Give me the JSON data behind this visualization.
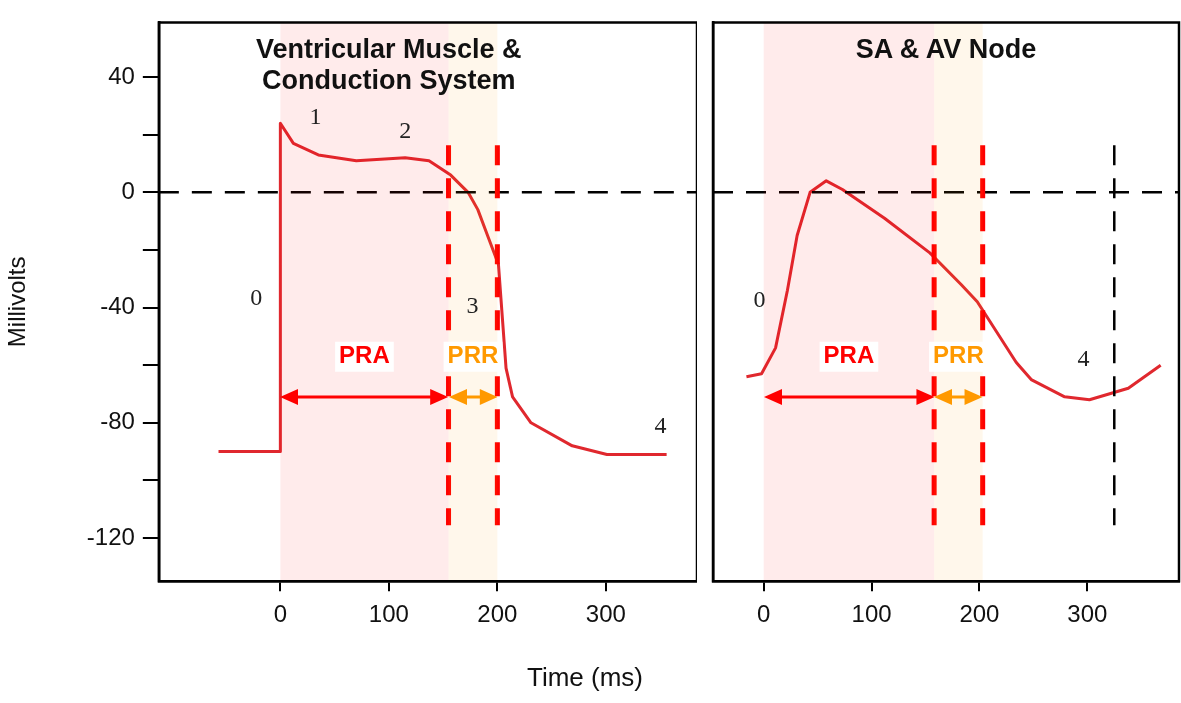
{
  "chart_data": [
    {
      "type": "line",
      "title": "Ventricular Muscle & Conduction System",
      "ylabel": "Millivolts",
      "xlabel": "Time (ms)",
      "xlim": [
        -112,
        384
      ],
      "xticks": [
        0,
        100,
        200,
        300
      ],
      "ylim": [
        -135,
        59
      ],
      "yticks": [
        -120,
        {
          "value": -100,
          "label": null
        },
        -80,
        {
          "value": -60,
          "label": null
        },
        -40,
        {
          "value": -20,
          "label": null
        },
        0,
        {
          "value": 20,
          "label": null
        },
        40
      ],
      "series": [
        {
          "color": "#e0282e",
          "x": [
            -57,
            0,
            0,
            12,
            35,
            70,
            115,
            137,
            157,
            173,
            182,
            192,
            201,
            208,
            214,
            231,
            269,
            301,
            356
          ],
          "values": [
            -90,
            -90,
            24,
            17,
            13,
            11,
            12,
            11,
            6,
            0,
            -6,
            -16,
            -25,
            -61,
            -71,
            -80,
            -88,
            -91,
            -91
          ]
        }
      ],
      "ref_lines": [
        {
          "axis": "y",
          "value": 0,
          "color": "#000000",
          "line_style": "dashed"
        },
        {
          "axis": "x",
          "value": 155,
          "color": "#ff0000",
          "line_style": "dashed"
        },
        {
          "axis": "x",
          "value": 200,
          "color": "#ff0000",
          "line_style": "dashed"
        }
      ],
      "bands": [
        {
          "axis": "x",
          "from": 0,
          "to": 155,
          "label": "PRA",
          "color": "#ff0000"
        },
        {
          "axis": "x",
          "from": 155,
          "to": 200,
          "label": "PRR",
          "color": "#ff9900"
        }
      ],
      "annotations": [
        {
          "text": "0",
          "x": 0,
          "y": -37
        },
        {
          "text": "1",
          "x": 12,
          "y": 17
        },
        {
          "text": "2",
          "x": 115,
          "y": 12
        },
        {
          "text": "3",
          "x": 201,
          "y": -25
        },
        {
          "text": "4",
          "x": 356,
          "y": -91
        }
      ]
    },
    {
      "type": "line",
      "title": "SA & AV Node",
      "xlim": [
        -47,
        385
      ],
      "xticks": [
        0,
        100,
        200,
        300
      ],
      "ylim": [
        -135,
        59
      ],
      "tick_labels": "x",
      "series": [
        {
          "color": "#e0282e",
          "x": [
            -16,
            -2,
            11,
            22,
            31,
            43,
            58,
            73,
            112,
            154,
            183,
            198,
            234,
            248,
            279,
            302,
            338,
            368
          ],
          "values": [
            -64,
            -63,
            -54,
            -34,
            -15,
            0,
            4,
            1,
            -9,
            -21,
            -32,
            -38,
            -59,
            -65,
            -71,
            -72,
            -68,
            -60
          ]
        }
      ],
      "ref_lines": [
        {
          "axis": "y",
          "value": 0,
          "color": "#000000",
          "line_style": "dashed"
        },
        {
          "axis": "x",
          "value": 158,
          "color": "#ff0000",
          "line_style": "dashed"
        },
        {
          "axis": "x",
          "value": 203,
          "color": "#ff0000",
          "line_style": "dashed"
        },
        {
          "axis": "x",
          "value": 325,
          "color": "#000000",
          "line_style": "dashed"
        }
      ],
      "bands": [
        {
          "axis": "x",
          "from": 0,
          "to": 158,
          "label": "PRA",
          "color": "#ff0000"
        },
        {
          "axis": "x",
          "from": 158,
          "to": 203,
          "label": "PRR",
          "color": "#ff9900"
        }
      ],
      "annotations": [
        {
          "text": "0",
          "x": 22,
          "y": -34
        },
        {
          "text": "4",
          "x": 302,
          "y": -72
        }
      ]
    }
  ]
}
